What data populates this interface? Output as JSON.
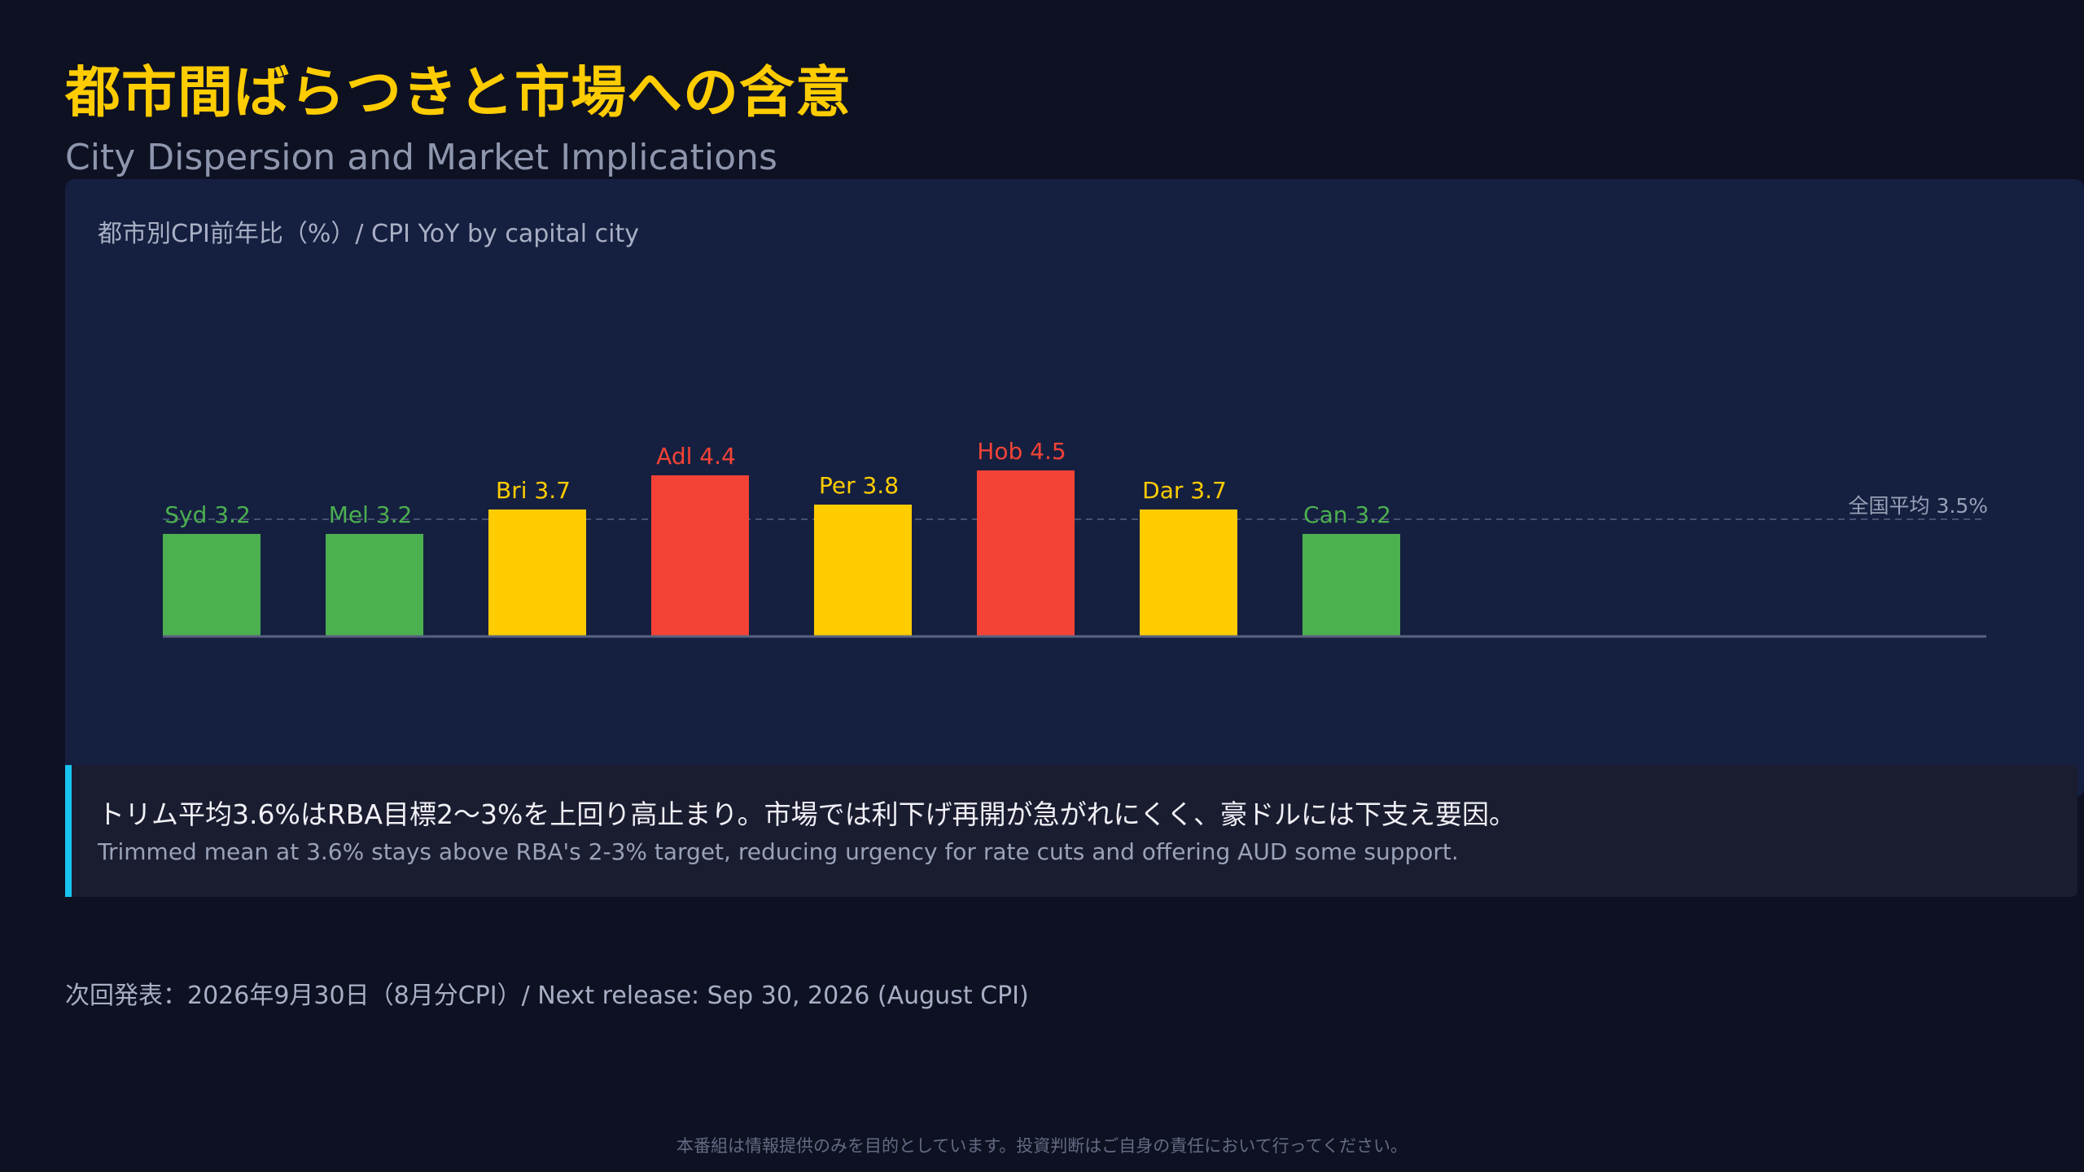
{
  "header": {
    "title_jp": "都市間ばらつきと市場への含意",
    "title_en": "City Dispersion and Market Implications"
  },
  "colors": {
    "accent_title": "#ffcc00",
    "below_avg": "#4caf50",
    "above_avg": "#ffcc00",
    "high": "#f44336",
    "callout_border": "#18c5f0"
  },
  "chart_data": {
    "type": "bar",
    "title": "都市別CPI前年比（%）/ CPI YoY by capital city",
    "categories": [
      "Syd",
      "Mel",
      "Bri",
      "Adl",
      "Per",
      "Hob",
      "Dar",
      "Can"
    ],
    "values": [
      3.2,
      3.2,
      3.7,
      4.4,
      3.8,
      4.5,
      3.7,
      3.2
    ],
    "bar_labels": [
      "Syd 3.2",
      "Mel 3.2",
      "Bri 3.7",
      "Adl 4.4",
      "Per 3.8",
      "Hob 4.5",
      "Dar 3.7",
      "Can 3.2"
    ],
    "bar_colors": [
      "#4caf50",
      "#4caf50",
      "#ffcc00",
      "#f44336",
      "#ffcc00",
      "#f44336",
      "#ffcc00",
      "#4caf50"
    ],
    "reference_line": {
      "value": 3.5,
      "label": "全国平均 3.5%"
    },
    "grid": false,
    "legend": "none"
  },
  "callout": {
    "text_jp": "トリム平均3.6%はRBA目標2〜3%を上回り高止まり。市場では利下げ再開が急がれにくく、豪ドルには下支え要因。",
    "text_en": "Trimmed mean at 3.6% stays above RBA's 2-3% target, reducing urgency for rate cuts and offering AUD some support."
  },
  "footer": {
    "next_release": "次回発表：2026年9月30日（8月分CPI）/ Next release: Sep 30, 2026 (August CPI)",
    "disclaimer": "本番組は情報提供のみを目的としています。投資判断はご自身の責任において行ってください。"
  }
}
